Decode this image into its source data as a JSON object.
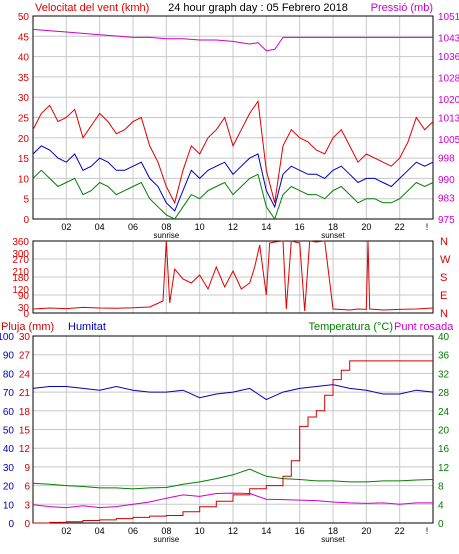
{
  "header": {
    "wind_label": "Velocitat del vent (kmh)",
    "title": "24 hour graph day : 05 Febrero 2018",
    "pressure_label": "Pressió (mb)"
  },
  "middle": {
    "compass": [
      "N",
      "W",
      "S",
      "E",
      "N"
    ]
  },
  "bottom_header": {
    "rain_label": "Pluja (mm)",
    "humidity_label": "Humitat",
    "temp_label": "Temperatura (°C)",
    "dew_label": "Punt rosada"
  },
  "x_axis": {
    "ticks": [
      "02",
      "04",
      "06",
      "08",
      "10",
      "12",
      "14",
      "16",
      "18",
      "20",
      "22"
    ],
    "sunrise_label": "sunrise",
    "sunset_label": "sunset",
    "end_marker": "!"
  },
  "colors": {
    "wind": "#e00000",
    "wind_avg": "#0000c0",
    "wind_low": "#008000",
    "pressure": "#cc00cc",
    "direction": "#e00000",
    "humidity": "#0000c0",
    "temperature": "#008000",
    "dew": "#cc00cc",
    "rain": "#d00000",
    "grid": "#c8c8c8",
    "frame": "#000000"
  },
  "chart_data": [
    {
      "type": "line",
      "title": "24 hour graph day : 05 Febrero 2018",
      "x_range": [
        0,
        24
      ],
      "ylabel": "Velocitat del vent (kmh)",
      "ylim": [
        0,
        50
      ],
      "y_ticks": [
        0,
        5,
        10,
        15,
        20,
        25,
        30,
        35,
        40,
        45,
        50
      ],
      "y2label": "Pressió (mb)",
      "y2lim": [
        975,
        1051
      ],
      "y2_ticks": [
        975,
        983,
        990,
        998,
        1005,
        1013,
        1020,
        1028,
        1036,
        1043,
        1051
      ],
      "series": [
        {
          "axis": "left",
          "x": [
            0,
            0.5,
            1,
            1.5,
            2,
            2.5,
            3,
            3.5,
            4,
            4.5,
            5,
            5.5,
            6,
            6.5,
            7,
            7.5,
            8,
            8.5,
            9,
            9.5,
            10,
            10.5,
            11,
            11.5,
            12,
            12.5,
            13,
            13.5,
            14,
            14.5,
            15,
            15.5,
            16,
            16.5,
            17,
            17.5,
            18,
            18.5,
            19,
            19.5,
            20,
            20.5,
            21,
            21.5,
            22,
            22.5,
            23,
            23.5,
            24
          ],
          "values": [
            22,
            26,
            28,
            24,
            25,
            27,
            20,
            23,
            26,
            24,
            21,
            22,
            24,
            25,
            18,
            14,
            8,
            4,
            12,
            18,
            16,
            20,
            22,
            25,
            18,
            22,
            26,
            29,
            12,
            4,
            18,
            22,
            20,
            19,
            17,
            16,
            20,
            22,
            18,
            14,
            16,
            15,
            14,
            13,
            15,
            19,
            25,
            22,
            24
          ]
        },
        {
          "axis": "left",
          "x": [
            0,
            0.5,
            1,
            1.5,
            2,
            2.5,
            3,
            3.5,
            4,
            4.5,
            5,
            5.5,
            6,
            6.5,
            7,
            7.5,
            8,
            8.5,
            9,
            9.5,
            10,
            10.5,
            11,
            11.5,
            12,
            12.5,
            13,
            13.5,
            14,
            14.5,
            15,
            15.5,
            16,
            16.5,
            17,
            17.5,
            18,
            18.5,
            19,
            19.5,
            20,
            20.5,
            21,
            21.5,
            22,
            22.5,
            23,
            23.5,
            24
          ],
          "values": [
            16,
            18,
            17,
            15,
            14,
            16,
            12,
            13,
            15,
            14,
            12,
            12,
            13,
            14,
            10,
            8,
            4,
            2,
            7,
            12,
            10,
            12,
            13,
            14,
            11,
            13,
            15,
            16,
            7,
            3,
            11,
            13,
            12,
            11,
            11,
            10,
            12,
            13,
            11,
            9,
            10,
            10,
            9,
            8,
            10,
            12,
            14,
            13,
            14
          ]
        },
        {
          "axis": "left",
          "x": [
            0,
            0.5,
            1,
            1.5,
            2,
            2.5,
            3,
            3.5,
            4,
            4.5,
            5,
            5.5,
            6,
            6.5,
            7,
            7.5,
            8,
            8.5,
            9,
            9.5,
            10,
            10.5,
            11,
            11.5,
            12,
            12.5,
            13,
            13.5,
            14,
            14.5,
            15,
            15.5,
            16,
            16.5,
            17,
            17.5,
            18,
            18.5,
            19,
            19.5,
            20,
            20.5,
            21,
            21.5,
            22,
            22.5,
            23,
            23.5,
            24
          ],
          "values": [
            10,
            12,
            10,
            8,
            9,
            10,
            6,
            7,
            9,
            8,
            6,
            7,
            8,
            9,
            5,
            3,
            1,
            0,
            3,
            6,
            5,
            7,
            8,
            9,
            6,
            8,
            10,
            11,
            3,
            0,
            6,
            8,
            7,
            6,
            6,
            5,
            7,
            8,
            6,
            4,
            5,
            5,
            4,
            4,
            5,
            7,
            9,
            8,
            9
          ]
        },
        {
          "axis": "right",
          "x": [
            0,
            1,
            2,
            3,
            4,
            5,
            6,
            7,
            8,
            9,
            10,
            11,
            12,
            12.5,
            13,
            13.5,
            14,
            14.5,
            15,
            16,
            17,
            18,
            19,
            20,
            21,
            22,
            23,
            24
          ],
          "values": [
            1046,
            1045.5,
            1045,
            1044.5,
            1044,
            1043.5,
            1043,
            1043,
            1042.5,
            1042.5,
            1042,
            1042,
            1041.5,
            1041,
            1040.5,
            1041,
            1038,
            1038.5,
            1043,
            1043,
            1043,
            1043,
            1043,
            1043,
            1043,
            1043,
            1043,
            1043
          ]
        }
      ]
    },
    {
      "type": "line",
      "x_range": [
        0,
        24
      ],
      "ylim": [
        0,
        360
      ],
      "y_ticks": [
        0,
        30,
        90,
        120,
        180,
        210,
        270,
        300,
        360
      ],
      "right_ticks": [
        "N",
        "W",
        "S",
        "E",
        "N"
      ],
      "series": [
        {
          "x": [
            0,
            1,
            2,
            3,
            4,
            5,
            6,
            7,
            7.8,
            8,
            8.2,
            8.5,
            9,
            9.5,
            10,
            10.5,
            11,
            11.5,
            12,
            12.5,
            13,
            13.3,
            13.6,
            14,
            14.2,
            14.5,
            15,
            15.2,
            15.5,
            16,
            16.3,
            16.6,
            17,
            17.5,
            18,
            19,
            19.5,
            20,
            20.1,
            20.2,
            21,
            22,
            23,
            24
          ],
          "values": [
            20,
            25,
            22,
            28,
            25,
            24,
            26,
            30,
            60,
            360,
            50,
            220,
            170,
            150,
            190,
            120,
            230,
            130,
            210,
            120,
            150,
            230,
            340,
            90,
            350,
            355,
            360,
            20,
            360,
            350,
            10,
            360,
            355,
            360,
            20,
            15,
            20,
            18,
            360,
            20,
            15,
            18,
            20,
            25
          ]
        }
      ]
    },
    {
      "type": "line",
      "x_range": [
        0,
        24
      ],
      "ylabel": "Pluja (mm)",
      "ylim": [
        0,
        30
      ],
      "y_ticks": [
        0,
        3,
        6,
        9,
        12,
        15,
        18,
        21,
        24,
        27,
        30
      ],
      "y2label": "Temperatura (°C)",
      "y2lim": [
        0,
        40
      ],
      "y2_ticks": [
        0,
        4,
        8,
        12,
        16,
        20,
        24,
        28,
        32,
        36,
        40
      ],
      "series": [
        {
          "name": "Humitat",
          "axis": "humidity",
          "ylim": [
            0,
            100
          ],
          "y_ticks": [
            0,
            10,
            20,
            30,
            40,
            50,
            60,
            70,
            80,
            90,
            100
          ],
          "x": [
            0,
            1,
            2,
            3,
            4,
            5,
            6,
            7,
            8,
            9,
            10,
            11,
            12,
            13,
            14,
            15,
            16,
            17,
            18,
            19,
            20,
            21,
            22,
            23,
            24
          ],
          "values": [
            72,
            73,
            73,
            72,
            71,
            73,
            71,
            70,
            70,
            71,
            67,
            69,
            70,
            72,
            66,
            70,
            72,
            73,
            74,
            72,
            71,
            69,
            69,
            71,
            70
          ]
        },
        {
          "name": "Temperatura",
          "axis": "right",
          "x": [
            0,
            1,
            2,
            3,
            4,
            5,
            6,
            7,
            8,
            9,
            10,
            11,
            12,
            13,
            14,
            15,
            16,
            17,
            18,
            19,
            20,
            21,
            22,
            23,
            24
          ],
          "values": [
            8.5,
            8.3,
            8,
            7.8,
            7.5,
            7.5,
            7.3,
            7.5,
            7.6,
            8.3,
            8.8,
            9.5,
            10.3,
            11.5,
            10,
            9.5,
            9.3,
            9,
            9,
            8.8,
            8.8,
            9,
            9,
            9.2,
            9.3
          ]
        },
        {
          "name": "Punt rosada",
          "axis": "right",
          "x": [
            0,
            1,
            2,
            3,
            4,
            5,
            6,
            7,
            8,
            9,
            10,
            11,
            12,
            13,
            14,
            15,
            16,
            17,
            18,
            19,
            20,
            21,
            22,
            23,
            24
          ],
          "values": [
            3.9,
            3.5,
            3.3,
            3.7,
            3.3,
            3.5,
            4,
            4.5,
            5.3,
            6,
            5.7,
            6.3,
            6.4,
            6.3,
            5.1,
            5,
            4.9,
            4.8,
            4.5,
            4.3,
            4.2,
            4.3,
            4,
            4.3,
            4.3
          ]
        },
        {
          "name": "Pluja",
          "axis": "left",
          "x": [
            0,
            1,
            2,
            3,
            4,
            5,
            6,
            7,
            8,
            9,
            10,
            11,
            12,
            13,
            14,
            15,
            15.5,
            16,
            16.5,
            17,
            17.5,
            18,
            18.5,
            19,
            20,
            21,
            22,
            23,
            24
          ],
          "values": [
            0,
            0.1,
            0.2,
            0.4,
            0.5,
            0.7,
            0.9,
            1.1,
            1.2,
            1.8,
            2.6,
            3.5,
            4.5,
            5.5,
            6,
            7.5,
            10,
            15.5,
            17,
            18,
            20.5,
            23,
            24.5,
            26,
            26,
            26,
            26,
            26,
            26
          ]
        }
      ]
    }
  ]
}
